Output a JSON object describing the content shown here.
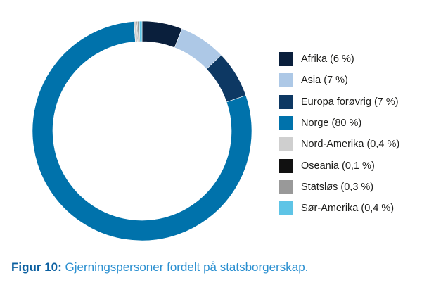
{
  "chart_data": {
    "type": "pie",
    "style": "donut",
    "slices": [
      {
        "label": "Afrika (6 %)",
        "name": "Afrika",
        "value": 6,
        "color": "#0a1f3c"
      },
      {
        "label": "Asia (7 %)",
        "name": "Asia",
        "value": 7,
        "color": "#adc8e6"
      },
      {
        "label": "Europa forøvrig (7 %)",
        "name": "Europa forøvrig",
        "value": 7,
        "color": "#0d3863"
      },
      {
        "label": "Norge (80 %)",
        "name": "Norge",
        "value": 80,
        "color": "#0072ab"
      },
      {
        "label": "Nord-Amerika (0,4 %)",
        "name": "Nord-Amerika",
        "value": 0.4,
        "color": "#cfcfcf"
      },
      {
        "label": "Oseania (0,1 %)",
        "name": "Oseania",
        "value": 0.1,
        "color": "#111111"
      },
      {
        "label": "Statsløs (0,3 %)",
        "name": "Statsløs",
        "value": 0.3,
        "color": "#999999"
      },
      {
        "label": "Sør-Amerika (0,4 %)",
        "name": "Sør-Amerika",
        "value": 0.4,
        "color": "#5ec4e6"
      }
    ],
    "start_angle": "top, clockwise",
    "legend_position": "right"
  },
  "caption": {
    "label": "Figur 10:",
    "text": " Gjerningspersoner fordelt på statsborgerskap.",
    "label_color": "#0a5fa0",
    "text_color": "#2a8fd0"
  }
}
